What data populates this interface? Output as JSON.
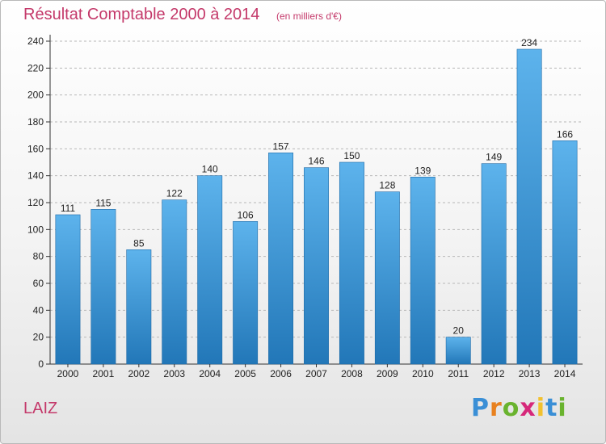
{
  "header": {
    "title": "Résultat Comptable 2000 à 2014",
    "subtitle": "(en milliers d'€)"
  },
  "footer": {
    "place": "LAIZ",
    "logo": {
      "letters": [
        "P",
        "r",
        "o",
        "x",
        "i",
        "t",
        "i"
      ],
      "colors": [
        "#3a8fd6",
        "#e8811f",
        "#69b32e",
        "#d6287a",
        "#f2c12e",
        "#3a8fd6",
        "#69b32e"
      ]
    }
  },
  "colors": {
    "title": "#c4396a",
    "bar_top": "#5db3ec",
    "bar_bottom": "#2277b8",
    "grid": "#b8b8b8"
  },
  "chart_data": {
    "type": "bar",
    "title": "Résultat Comptable 2000 à 2014",
    "subtitle": "(en milliers d'€)",
    "categories": [
      "2000",
      "2001",
      "2002",
      "2003",
      "2004",
      "2005",
      "2006",
      "2007",
      "2008",
      "2009",
      "2010",
      "2011",
      "2012",
      "2013",
      "2014"
    ],
    "values": [
      111,
      115,
      85,
      122,
      140,
      106,
      157,
      146,
      150,
      128,
      139,
      20,
      149,
      234,
      166
    ],
    "yticks": [
      0,
      20,
      40,
      60,
      80,
      100,
      120,
      140,
      160,
      180,
      200,
      220,
      240
    ],
    "ylim": [
      0,
      240
    ],
    "grid": true,
    "xlabel": "",
    "ylabel": ""
  }
}
